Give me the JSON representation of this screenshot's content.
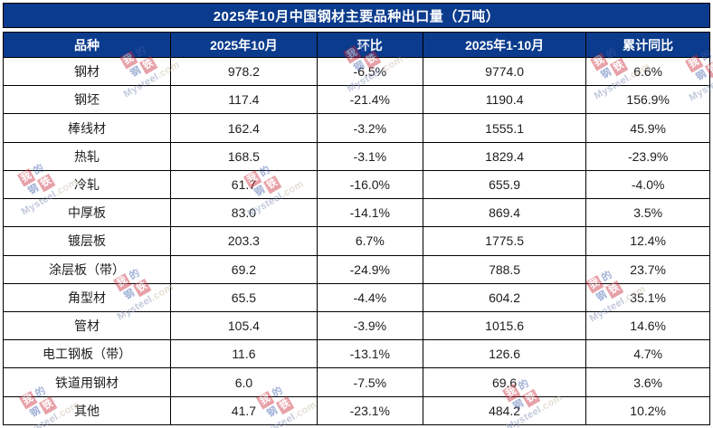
{
  "title": "2025年10月中国钢材主要品种出口量（万吨）",
  "table": {
    "columns": [
      "品种",
      "2025年10月",
      "环比",
      "2025年1-10月",
      "累计同比"
    ],
    "rows": [
      {
        "name": "钢材",
        "oct": "978.2",
        "mom": "-6.5%",
        "cum": "9774.0",
        "yoy": "6.6%",
        "is_link": false
      },
      {
        "name": "钢坯",
        "oct": "117.4",
        "mom": "-21.4%",
        "cum": "1190.4",
        "yoy": "156.9%",
        "is_link": true
      },
      {
        "name": "棒线材",
        "oct": "162.4",
        "mom": "-3.2%",
        "cum": "1555.1",
        "yoy": "45.9%",
        "is_link": false
      },
      {
        "name": "热轧",
        "oct": "168.5",
        "mom": "-3.1%",
        "cum": "1829.4",
        "yoy": "-23.9%",
        "is_link": false
      },
      {
        "name": "冷轧",
        "oct": "61.7",
        "mom": "-16.0%",
        "cum": "655.9",
        "yoy": "-4.0%",
        "is_link": false
      },
      {
        "name": "中厚板",
        "oct": "83.0",
        "mom": "-14.1%",
        "cum": "869.4",
        "yoy": "3.5%",
        "is_link": false
      },
      {
        "name": "镀层板",
        "oct": "203.3",
        "mom": "6.7%",
        "cum": "1775.5",
        "yoy": "12.4%",
        "is_link": false
      },
      {
        "name": "涂层板（带）",
        "oct": "69.2",
        "mom": "-24.9%",
        "cum": "788.5",
        "yoy": "23.7%",
        "is_link": false
      },
      {
        "name": "角型材",
        "oct": "65.5",
        "mom": "-4.4%",
        "cum": "604.2",
        "yoy": "35.1%",
        "is_link": false
      },
      {
        "name": "管材",
        "oct": "105.4",
        "mom": "-3.9%",
        "cum": "1015.6",
        "yoy": "14.6%",
        "is_link": false
      },
      {
        "name": "电工钢板（带）",
        "oct": "11.6",
        "mom": "-13.1%",
        "cum": "126.6",
        "yoy": "4.7%",
        "is_link": false
      },
      {
        "name": "铁道用钢材",
        "oct": "6.0",
        "mom": "-7.5%",
        "cum": "69.6",
        "yoy": "3.6%",
        "is_link": false
      },
      {
        "name": "其他",
        "oct": "41.7",
        "mom": "-23.1%",
        "cum": "484.2",
        "yoy": "10.2%",
        "is_link": false
      }
    ]
  },
  "watermark": {
    "logo_chars": [
      "我",
      "的",
      "钢",
      "铁"
    ],
    "brand": "Mysteel",
    "suffix": ".com"
  },
  "colors": {
    "header_bg": "#0b3b8c",
    "link_text": "#4472c4",
    "border": "#000000",
    "body_text": "#202020",
    "watermark_red": "#ca2a3a"
  }
}
